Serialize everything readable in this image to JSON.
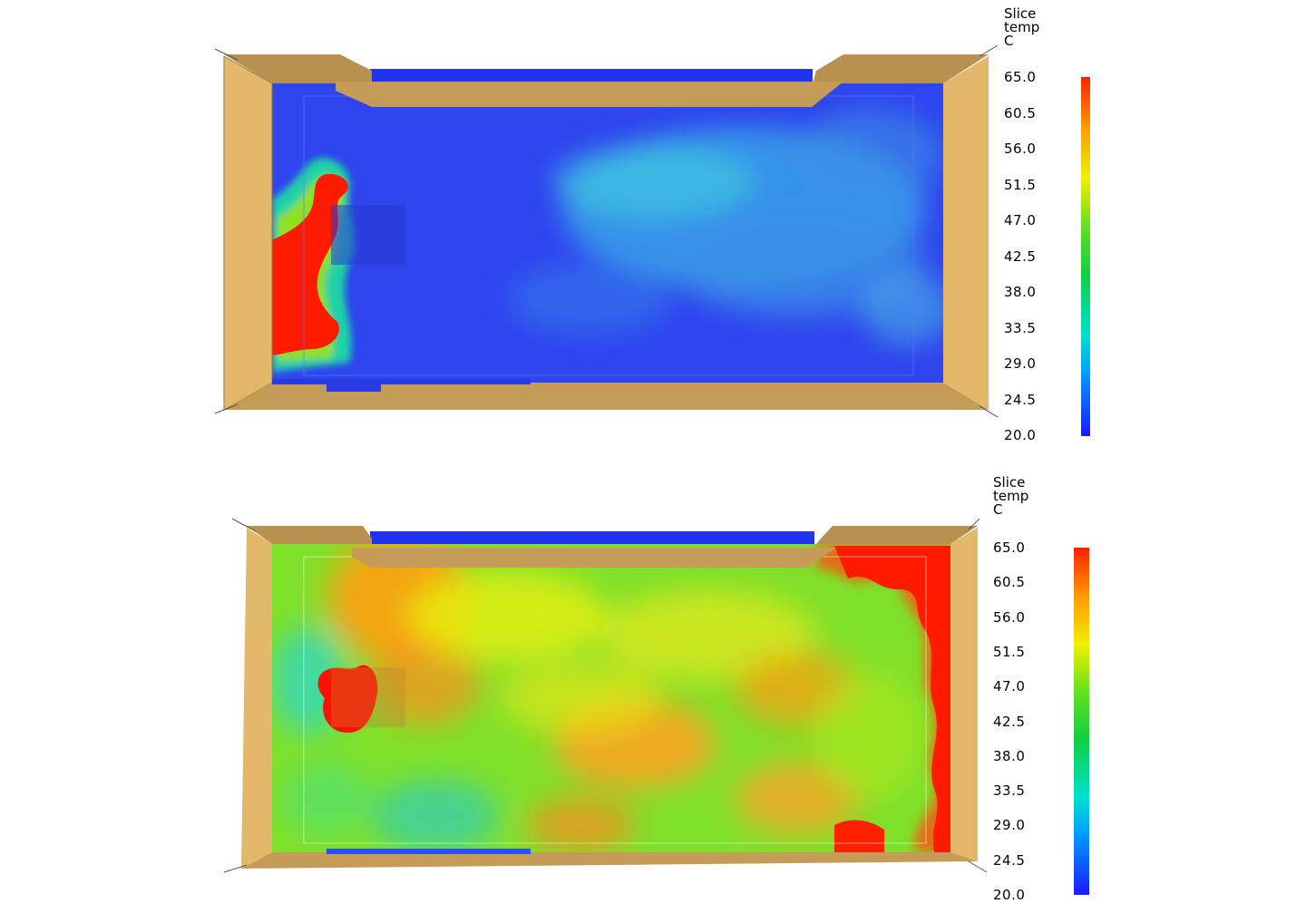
{
  "panels": [
    {
      "name": "top",
      "legend_title_lines": [
        "Slice",
        "temp",
        "C"
      ],
      "ticks": [
        "65.0",
        "60.5",
        "56.0",
        "51.5",
        "47.0",
        "42.5",
        "38.0",
        "33.5",
        "29.0",
        "24.5",
        "20.0"
      ],
      "colormap": [
        "#1a1aff",
        "#00a0ff",
        "#00e0d0",
        "#10d040",
        "#60e020",
        "#f0f000",
        "#ff9900",
        "#ff2000"
      ]
    },
    {
      "name": "bottom",
      "legend_title_lines": [
        "Slice",
        "temp",
        "C"
      ],
      "ticks": [
        "65.0",
        "60.5",
        "56.0",
        "51.5",
        "47.0",
        "42.5",
        "38.0",
        "33.5",
        "29.0",
        "24.5",
        "20.0"
      ],
      "colormap": [
        "#1a1aff",
        "#00a0ff",
        "#00e0d0",
        "#10d040",
        "#60e020",
        "#f0f000",
        "#ff9900",
        "#ff2000"
      ]
    }
  ],
  "colors": {
    "wall": "#e2b96a",
    "wall_dark": "#b08a48",
    "cold": "#2a3ff0",
    "hot": "#ff1a00"
  }
}
